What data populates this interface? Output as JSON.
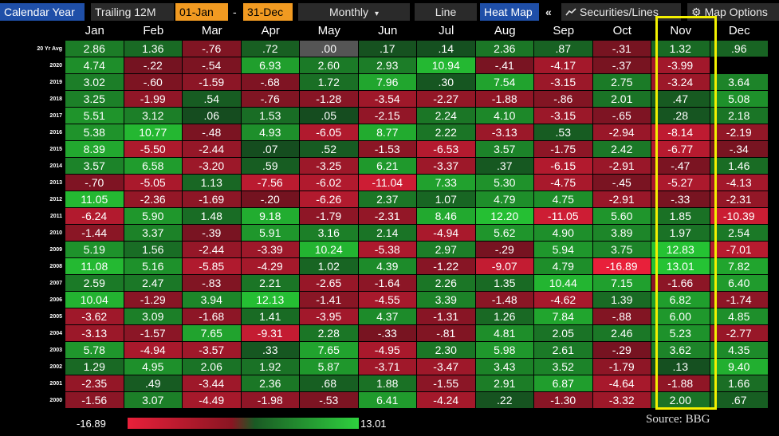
{
  "toolbar": {
    "calendar_year": "Calendar Year",
    "trailing": "Trailing 12M",
    "start_date": "01-Jan",
    "dash": "-",
    "end_date": "31-Dec",
    "frequency": "Monthly",
    "frequency_caret": "▾",
    "line": "Line",
    "heat_map": "Heat Map",
    "collapse": "«",
    "securities_lines": "Securities/Lines",
    "map_options": "Map Options"
  },
  "months": [
    "Jan",
    "Feb",
    "Mar",
    "Apr",
    "May",
    "Jun",
    "Jul",
    "Aug",
    "Sep",
    "Oct",
    "Nov",
    "Dec"
  ],
  "rows": [
    {
      "label": "20 Yr Avg",
      "values": [
        "2.86",
        "1.36",
        "-.76",
        ".72",
        ".00",
        ".17",
        ".14",
        "2.36",
        ".87",
        "-.31",
        "1.32",
        ".96"
      ]
    },
    {
      "label": "2020",
      "values": [
        "4.74",
        "-.22",
        "-.54",
        "6.93",
        "2.60",
        "2.93",
        "10.94",
        "-.41",
        "-4.17",
        "-.37",
        "-3.99",
        ""
      ]
    },
    {
      "label": "2019",
      "values": [
        "3.02",
        "-.60",
        "-1.59",
        "-.68",
        "1.72",
        "7.96",
        ".30",
        "7.54",
        "-3.15",
        "2.75",
        "-3.24",
        "3.64"
      ]
    },
    {
      "label": "2018",
      "values": [
        "3.25",
        "-1.99",
        ".54",
        "-.76",
        "-1.28",
        "-3.54",
        "-2.27",
        "-1.88",
        "-.86",
        "2.01",
        ".47",
        "5.08"
      ]
    },
    {
      "label": "2017",
      "values": [
        "5.51",
        "3.12",
        ".06",
        "1.53",
        ".05",
        "-2.15",
        "2.24",
        "4.10",
        "-3.15",
        "-.65",
        ".28",
        "2.18"
      ]
    },
    {
      "label": "2016",
      "values": [
        "5.38",
        "10.77",
        "-.48",
        "4.93",
        "-6.05",
        "8.77",
        "2.22",
        "-3.13",
        ".53",
        "-2.94",
        "-8.14",
        "-2.19"
      ]
    },
    {
      "label": "2015",
      "values": [
        "8.39",
        "-5.50",
        "-2.44",
        ".07",
        ".52",
        "-1.53",
        "-6.53",
        "3.57",
        "-1.75",
        "2.42",
        "-6.77",
        "-.34"
      ]
    },
    {
      "label": "2014",
      "values": [
        "3.57",
        "6.58",
        "-3.20",
        ".59",
        "-3.25",
        "6.21",
        "-3.37",
        ".37",
        "-6.15",
        "-2.91",
        "-.47",
        "1.46"
      ]
    },
    {
      "label": "2013",
      "values": [
        "-.70",
        "-5.05",
        "1.13",
        "-7.56",
        "-6.02",
        "-11.04",
        "7.33",
        "5.30",
        "-4.75",
        "-.45",
        "-5.27",
        "-4.13"
      ]
    },
    {
      "label": "2012",
      "values": [
        "11.05",
        "-2.36",
        "-1.69",
        "-.20",
        "-6.26",
        "2.37",
        "1.07",
        "4.79",
        "4.75",
        "-2.91",
        "-.33",
        "-2.31"
      ]
    },
    {
      "label": "2011",
      "values": [
        "-6.24",
        "5.90",
        "1.48",
        "9.18",
        "-1.79",
        "-2.31",
        "8.46",
        "12.20",
        "-11.05",
        "5.60",
        "1.85",
        "-10.39"
      ]
    },
    {
      "label": "2010",
      "values": [
        "-1.44",
        "3.37",
        "-.39",
        "5.91",
        "3.16",
        "2.14",
        "-4.94",
        "5.62",
        "4.90",
        "3.89",
        "1.97",
        "2.54"
      ]
    },
    {
      "label": "2009",
      "values": [
        "5.19",
        "1.56",
        "-2.44",
        "-3.39",
        "10.24",
        "-5.38",
        "2.97",
        "-.29",
        "5.94",
        "3.75",
        "12.83",
        "-7.01"
      ]
    },
    {
      "label": "2008",
      "values": [
        "11.08",
        "5.16",
        "-5.85",
        "-4.29",
        "1.02",
        "4.39",
        "-1.22",
        "-9.07",
        "4.79",
        "-16.89",
        "13.01",
        "7.82"
      ]
    },
    {
      "label": "2007",
      "values": [
        "2.59",
        "2.47",
        "-.83",
        "2.21",
        "-2.65",
        "-1.64",
        "2.26",
        "1.35",
        "10.44",
        "7.15",
        "-1.66",
        "6.40"
      ]
    },
    {
      "label": "2006",
      "values": [
        "10.04",
        "-1.29",
        "3.94",
        "12.13",
        "-1.41",
        "-4.55",
        "3.39",
        "-1.48",
        "-4.62",
        "1.39",
        "6.82",
        "-1.74"
      ]
    },
    {
      "label": "2005",
      "values": [
        "-3.62",
        "3.09",
        "-1.68",
        "1.41",
        "-3.95",
        "4.37",
        "-1.31",
        "1.26",
        "7.84",
        "-.88",
        "6.00",
        "4.85"
      ]
    },
    {
      "label": "2004",
      "values": [
        "-3.13",
        "-1.57",
        "7.65",
        "-9.31",
        "2.28",
        "-.33",
        "-.81",
        "4.81",
        "2.05",
        "2.46",
        "5.23",
        "-2.77"
      ]
    },
    {
      "label": "2003",
      "values": [
        "5.78",
        "-4.94",
        "-3.57",
        ".33",
        "7.65",
        "-4.95",
        "2.30",
        "5.98",
        "2.61",
        "-.29",
        "3.62",
        "4.35"
      ]
    },
    {
      "label": "2002",
      "values": [
        "1.29",
        "4.95",
        "2.06",
        "1.92",
        "5.87",
        "-3.71",
        "-3.47",
        "3.43",
        "3.52",
        "-1.79",
        ".13",
        "9.40"
      ]
    },
    {
      "label": "2001",
      "values": [
        "-2.35",
        ".49",
        "-3.44",
        "2.36",
        ".68",
        "1.88",
        "-1.55",
        "2.91",
        "6.87",
        "-4.64",
        "-1.88",
        "1.66"
      ]
    },
    {
      "label": "2000",
      "values": [
        "-1.56",
        "3.07",
        "-4.49",
        "-1.98",
        "-.53",
        "6.41",
        "-4.24",
        ".22",
        "-1.30",
        "-3.32",
        "2.00",
        ".67"
      ]
    }
  ],
  "legend": {
    "min": "-16.89",
    "max": "13.01"
  },
  "source": "Source: BBG",
  "colors": {
    "toolbar_blue": "#1f4fa8",
    "date_orange": "#f19a21",
    "highlight": "#f3f000",
    "neg_strong": "#e8203a",
    "pos_strong": "#2ed13e"
  },
  "icons": {
    "securities": "chart-line-icon",
    "options": "gear-icon"
  }
}
